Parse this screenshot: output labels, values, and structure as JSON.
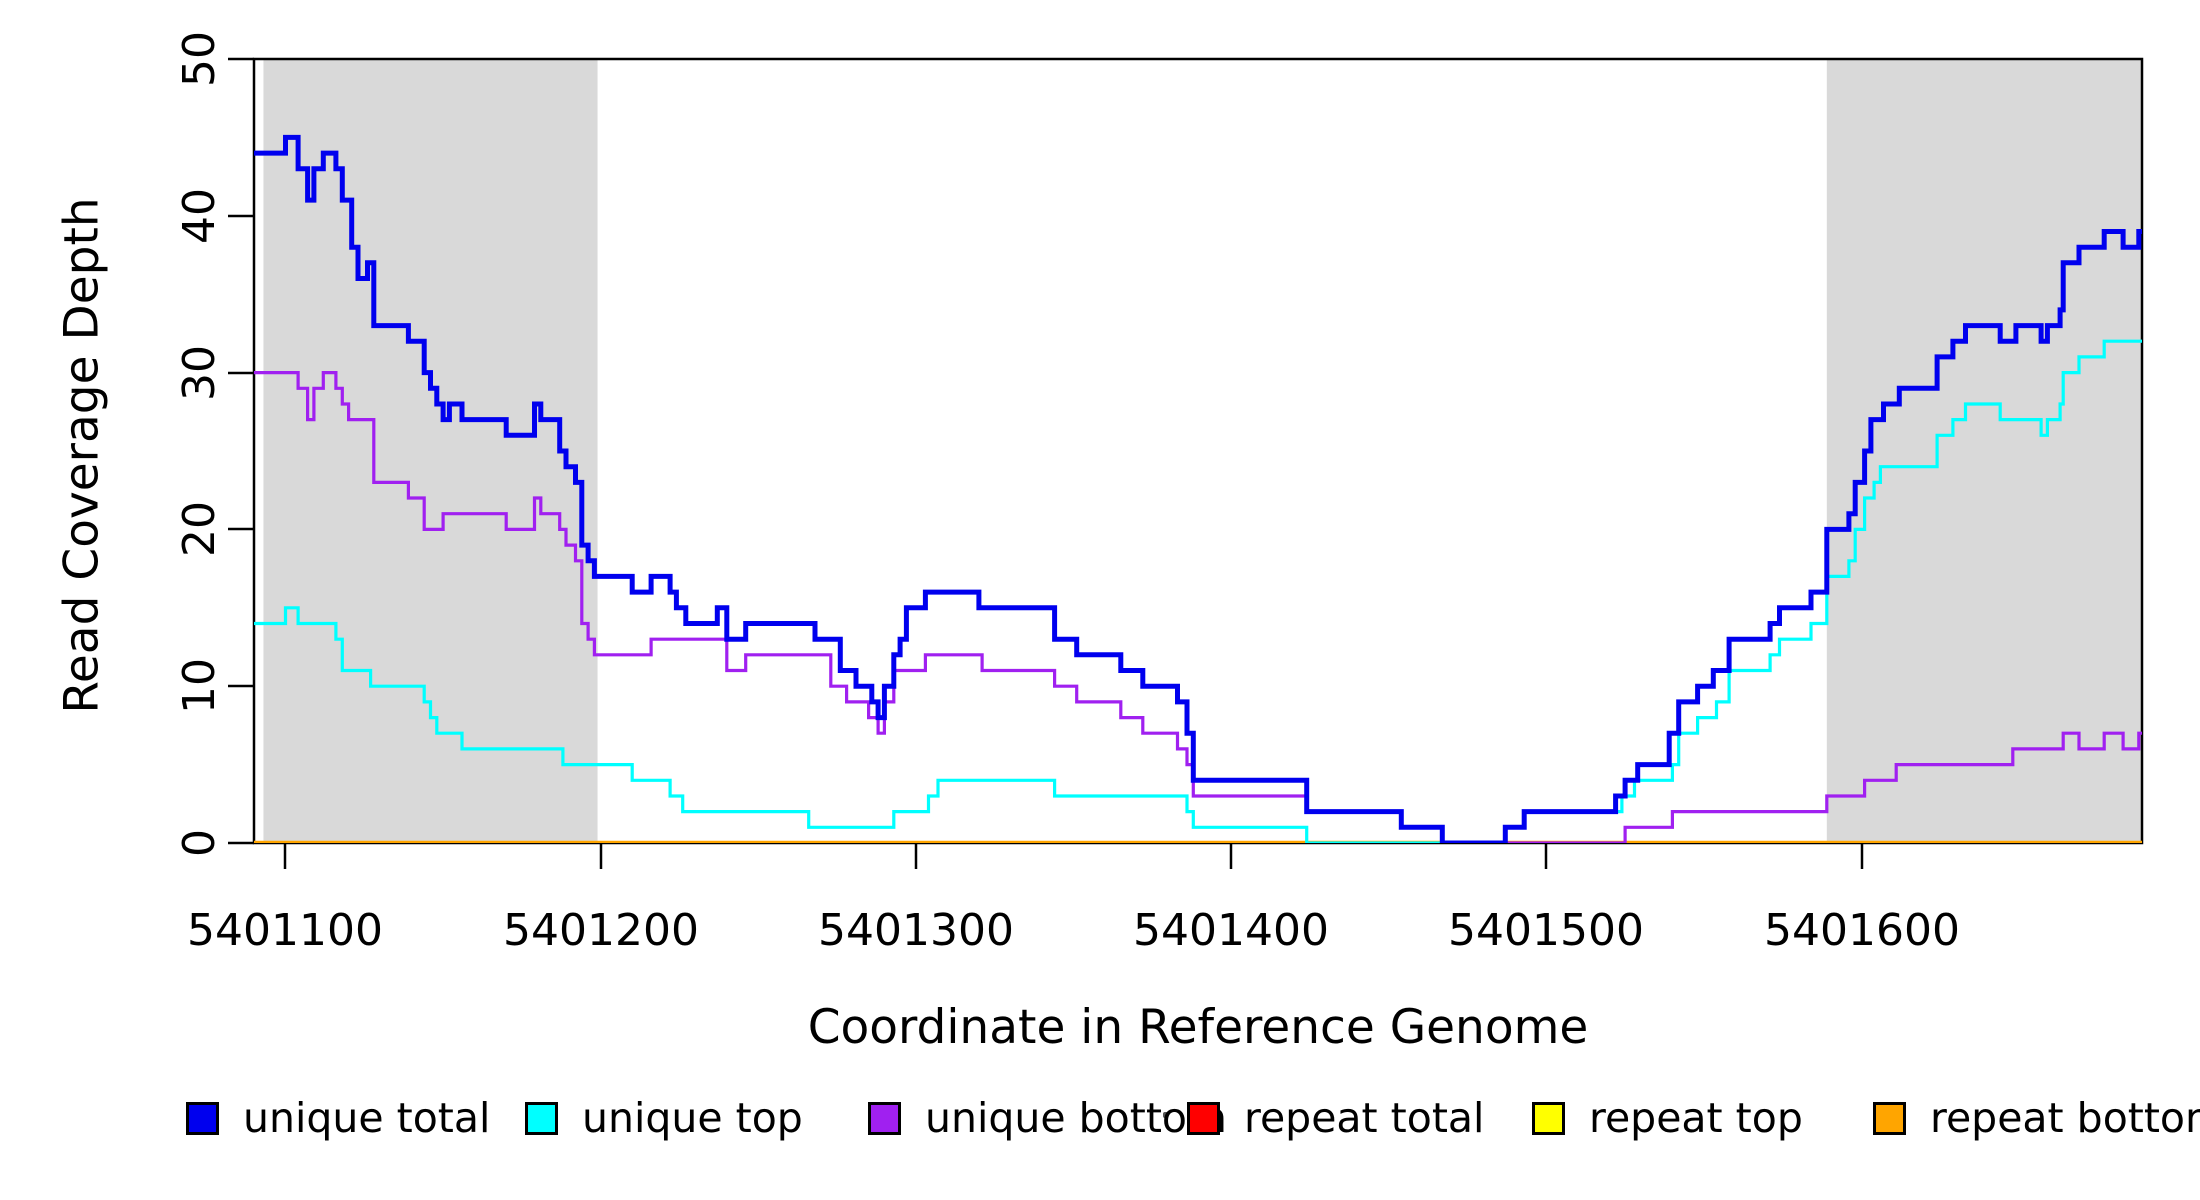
{
  "chart_data": {
    "type": "line",
    "subtype": "step-coverage-plot",
    "title": "",
    "xlabel": "Coordinate in Reference Genome",
    "ylabel": "Read Coverage Depth",
    "xlim": [
      5401090,
      5401689
    ],
    "ylim": [
      0,
      50
    ],
    "grid": "off",
    "x_ticks": [
      5401100,
      5401200,
      5401300,
      5401400,
      5401500,
      5401600
    ],
    "x_tick_labels": [
      "5401100",
      "5401200",
      "5401300",
      "5401400",
      "5401500",
      "5401600"
    ],
    "y_ticks": [
      0,
      10,
      20,
      30,
      40,
      50
    ],
    "y_tick_labels": [
      "0",
      "10",
      "20",
      "30",
      "40",
      "50"
    ],
    "shaded_regions": [
      {
        "name": "left-gray-band",
        "x0": 5401093,
        "x1": 5401199,
        "color": "#D9D9D9"
      },
      {
        "name": "right-gray-band",
        "x0": 5401589,
        "x1": 5401689,
        "color": "#D9D9D9"
      }
    ],
    "legend_position": "bottom",
    "legend": [
      {
        "label": "unique total",
        "color": "#0000EE"
      },
      {
        "label": "unique top",
        "color": "#00FFFF"
      },
      {
        "label": "unique bottom",
        "color": "#A020F0"
      },
      {
        "label": "repeat total",
        "color": "#FF0000"
      },
      {
        "label": "repeat top",
        "color": "#FFFF00"
      },
      {
        "label": "repeat bottom",
        "color": "#FFA500"
      }
    ],
    "series": [
      {
        "name": "repeat total",
        "color": "#FF0000",
        "width": 3,
        "points": [
          [
            5401090,
            0
          ]
        ]
      },
      {
        "name": "repeat top",
        "color": "#FFFF00",
        "width": 3,
        "points": [
          [
            5401090,
            0
          ]
        ]
      },
      {
        "name": "repeat bottom",
        "color": "#FFA500",
        "width": 4.5,
        "points": [
          [
            5401090,
            0
          ]
        ]
      },
      {
        "name": "unique bottom",
        "color": "#A020F0",
        "width": 3.2,
        "points": [
          [
            5401090,
            30
          ],
          [
            5401104,
            29
          ],
          [
            5401107,
            27
          ],
          [
            5401109,
            29
          ],
          [
            5401112,
            30
          ],
          [
            5401116,
            29
          ],
          [
            5401118,
            28
          ],
          [
            5401120,
            27
          ],
          [
            5401128,
            23
          ],
          [
            5401139,
            22
          ],
          [
            5401144,
            20
          ],
          [
            5401150,
            21
          ],
          [
            5401170,
            20
          ],
          [
            5401179,
            22
          ],
          [
            5401181,
            21
          ],
          [
            5401187,
            20
          ],
          [
            5401189,
            19
          ],
          [
            5401192,
            18
          ],
          [
            5401194,
            14
          ],
          [
            5401196,
            13
          ],
          [
            5401198,
            12
          ],
          [
            5401216,
            13
          ],
          [
            5401240,
            11
          ],
          [
            5401246,
            12
          ],
          [
            5401273,
            10
          ],
          [
            5401278,
            9
          ],
          [
            5401285,
            8
          ],
          [
            5401288,
            7
          ],
          [
            5401290,
            9
          ],
          [
            5401293,
            11
          ],
          [
            5401303,
            12
          ],
          [
            5401321,
            11
          ],
          [
            5401344,
            10
          ],
          [
            5401351,
            9
          ],
          [
            5401365,
            8
          ],
          [
            5401372,
            7
          ],
          [
            5401383,
            6
          ],
          [
            5401386,
            5
          ],
          [
            5401388,
            3
          ],
          [
            5401424,
            2
          ],
          [
            5401454,
            1
          ],
          [
            5401467,
            0
          ],
          [
            5401525,
            1
          ],
          [
            5401540,
            2
          ],
          [
            5401589,
            3
          ],
          [
            5401601,
            4
          ],
          [
            5401611,
            5
          ],
          [
            5401648,
            6
          ],
          [
            5401664,
            7
          ],
          [
            5401669,
            6
          ],
          [
            5401677,
            7
          ],
          [
            5401683,
            6
          ],
          [
            5401688,
            7
          ]
        ]
      },
      {
        "name": "unique top",
        "color": "#00FFFF",
        "width": 3.2,
        "points": [
          [
            5401090,
            14
          ],
          [
            5401100,
            15
          ],
          [
            5401104,
            14
          ],
          [
            5401116,
            13
          ],
          [
            5401118,
            11
          ],
          [
            5401127,
            10
          ],
          [
            5401144,
            9
          ],
          [
            5401146,
            8
          ],
          [
            5401148,
            7
          ],
          [
            5401156,
            6
          ],
          [
            5401188,
            5
          ],
          [
            5401210,
            4
          ],
          [
            5401222,
            3
          ],
          [
            5401226,
            2
          ],
          [
            5401266,
            1
          ],
          [
            5401293,
            2
          ],
          [
            5401304,
            3
          ],
          [
            5401307,
            4
          ],
          [
            5401344,
            3
          ],
          [
            5401386,
            2
          ],
          [
            5401388,
            1
          ],
          [
            5401424,
            0
          ],
          [
            5401487,
            1
          ],
          [
            5401493,
            2
          ],
          [
            5401524,
            3
          ],
          [
            5401528,
            4
          ],
          [
            5401540,
            5
          ],
          [
            5401542,
            7
          ],
          [
            5401548,
            8
          ],
          [
            5401554,
            9
          ],
          [
            5401558,
            11
          ],
          [
            5401571,
            12
          ],
          [
            5401574,
            13
          ],
          [
            5401584,
            14
          ],
          [
            5401589,
            17
          ],
          [
            5401596,
            18
          ],
          [
            5401598,
            20
          ],
          [
            5401601,
            22
          ],
          [
            5401604,
            23
          ],
          [
            5401606,
            24
          ],
          [
            5401624,
            26
          ],
          [
            5401629,
            27
          ],
          [
            5401633,
            28
          ],
          [
            5401644,
            27
          ],
          [
            5401657,
            26
          ],
          [
            5401659,
            27
          ],
          [
            5401663,
            28
          ],
          [
            5401664,
            30
          ],
          [
            5401669,
            31
          ],
          [
            5401677,
            32
          ]
        ]
      },
      {
        "name": "unique total",
        "color": "#0000EE",
        "width": 5,
        "points": [
          [
            5401090,
            44
          ],
          [
            5401100,
            45
          ],
          [
            5401104,
            43
          ],
          [
            5401107,
            41
          ],
          [
            5401109,
            43
          ],
          [
            5401112,
            44
          ],
          [
            5401116,
            43
          ],
          [
            5401118,
            41
          ],
          [
            5401121,
            38
          ],
          [
            5401123,
            36
          ],
          [
            5401126,
            37
          ],
          [
            5401128,
            33
          ],
          [
            5401139,
            32
          ],
          [
            5401144,
            30
          ],
          [
            5401146,
            29
          ],
          [
            5401148,
            28
          ],
          [
            5401150,
            27
          ],
          [
            5401152,
            28
          ],
          [
            5401156,
            27
          ],
          [
            5401170,
            26
          ],
          [
            5401179,
            28
          ],
          [
            5401181,
            27
          ],
          [
            5401187,
            25
          ],
          [
            5401189,
            24
          ],
          [
            5401192,
            23
          ],
          [
            5401194,
            19
          ],
          [
            5401196,
            18
          ],
          [
            5401198,
            17
          ],
          [
            5401210,
            16
          ],
          [
            5401216,
            17
          ],
          [
            5401222,
            16
          ],
          [
            5401224,
            15
          ],
          [
            5401227,
            14
          ],
          [
            5401237,
            15
          ],
          [
            5401240,
            13
          ],
          [
            5401246,
            14
          ],
          [
            5401268,
            13
          ],
          [
            5401276,
            11
          ],
          [
            5401281,
            10
          ],
          [
            5401286,
            9
          ],
          [
            5401288,
            8
          ],
          [
            5401290,
            10
          ],
          [
            5401293,
            12
          ],
          [
            5401295,
            13
          ],
          [
            5401297,
            15
          ],
          [
            5401303,
            16
          ],
          [
            5401320,
            15
          ],
          [
            5401344,
            13
          ],
          [
            5401351,
            12
          ],
          [
            5401365,
            11
          ],
          [
            5401372,
            10
          ],
          [
            5401383,
            9
          ],
          [
            5401386,
            7
          ],
          [
            5401388,
            4
          ],
          [
            5401424,
            2
          ],
          [
            5401454,
            1
          ],
          [
            5401467,
            0
          ],
          [
            5401487,
            1
          ],
          [
            5401493,
            2
          ],
          [
            5401522,
            3
          ],
          [
            5401525,
            4
          ],
          [
            5401529,
            5
          ],
          [
            5401539,
            7
          ],
          [
            5401542,
            9
          ],
          [
            5401548,
            10
          ],
          [
            5401553,
            11
          ],
          [
            5401558,
            13
          ],
          [
            5401571,
            14
          ],
          [
            5401574,
            15
          ],
          [
            5401584,
            16
          ],
          [
            5401589,
            20
          ],
          [
            5401596,
            21
          ],
          [
            5401598,
            23
          ],
          [
            5401601,
            25
          ],
          [
            5401603,
            27
          ],
          [
            5401607,
            28
          ],
          [
            5401612,
            29
          ],
          [
            5401624,
            31
          ],
          [
            5401629,
            32
          ],
          [
            5401633,
            33
          ],
          [
            5401644,
            32
          ],
          [
            5401649,
            33
          ],
          [
            5401657,
            32
          ],
          [
            5401659,
            33
          ],
          [
            5401663,
            34
          ],
          [
            5401664,
            37
          ],
          [
            5401669,
            38
          ],
          [
            5401677,
            39
          ],
          [
            5401683,
            38
          ],
          [
            5401688,
            39
          ]
        ]
      }
    ]
  }
}
